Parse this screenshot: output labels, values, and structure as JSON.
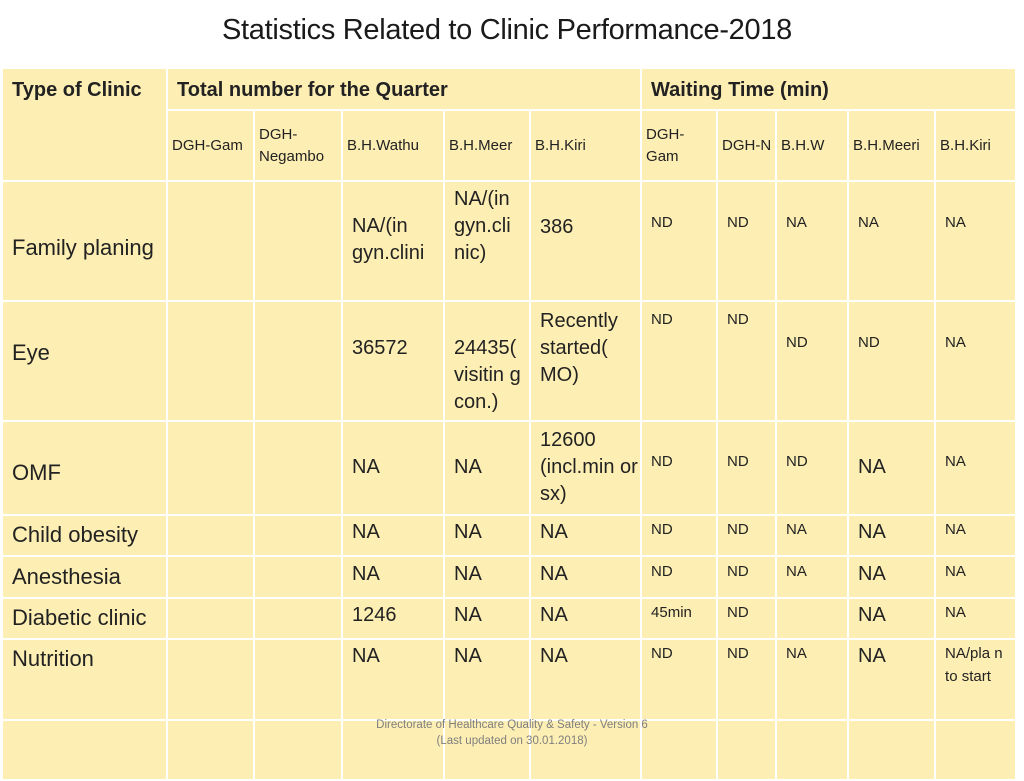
{
  "title": "Statistics Related to Clinic Performance-2018",
  "header": {
    "type_of_clinic": "Type of Clinic",
    "total_quarter": "Total number for the Quarter",
    "waiting_time": "Waiting Time (min)",
    "subheaders": [
      "DGH-Gam",
      "DGH-Negambo",
      "B.H.Wathu",
      "B.H.Meer",
      "B.H.Kiri",
      "DGH-Gam",
      "DGH-N",
      "B.H.W",
      "B.H.Meeri",
      "B.H.Kiri"
    ]
  },
  "rows": [
    {
      "clinic": "Family planing",
      "cells": [
        "",
        "",
        "NA/(in gyn.clini",
        "NA/(in gyn.cli nic)",
        "386",
        "ND",
        "ND",
        "NA",
        "NA",
        "NA"
      ]
    },
    {
      "clinic": "Eye",
      "cells": [
        "",
        "",
        "36572",
        "24435( visitin g con.)",
        "Recently started( MO)",
        "ND",
        "ND",
        "ND",
        "ND",
        "NA"
      ]
    },
    {
      "clinic": "OMF",
      "cells": [
        "",
        "",
        "NA",
        "NA",
        "12600 (incl.min or sx)",
        "ND",
        "ND",
        "ND",
        "NA",
        "NA"
      ]
    },
    {
      "clinic": "Child obesity",
      "cells": [
        "",
        "",
        "NA",
        "NA",
        "NA",
        "ND",
        "ND",
        "NA",
        "NA",
        "NA"
      ]
    },
    {
      "clinic": "Anesthesia",
      "cells": [
        "",
        "",
        "NA",
        "NA",
        "NA",
        "ND",
        "ND",
        "NA",
        "NA",
        "NA"
      ]
    },
    {
      "clinic": "Diabetic clinic",
      "cells": [
        "",
        "",
        "1246",
        "NA",
        "NA",
        "45min",
        "ND",
        "",
        "NA",
        "NA"
      ]
    },
    {
      "clinic": "Nutrition",
      "cells": [
        "",
        "",
        "NA",
        "NA",
        "NA",
        "ND",
        "ND",
        "NA",
        "NA",
        "NA/pla n to start"
      ]
    }
  ],
  "footer": {
    "line1": "Directorate of Healthcare Quality & Safety - Version 6",
    "line2": "(Last updated on 30.01.2018)"
  }
}
